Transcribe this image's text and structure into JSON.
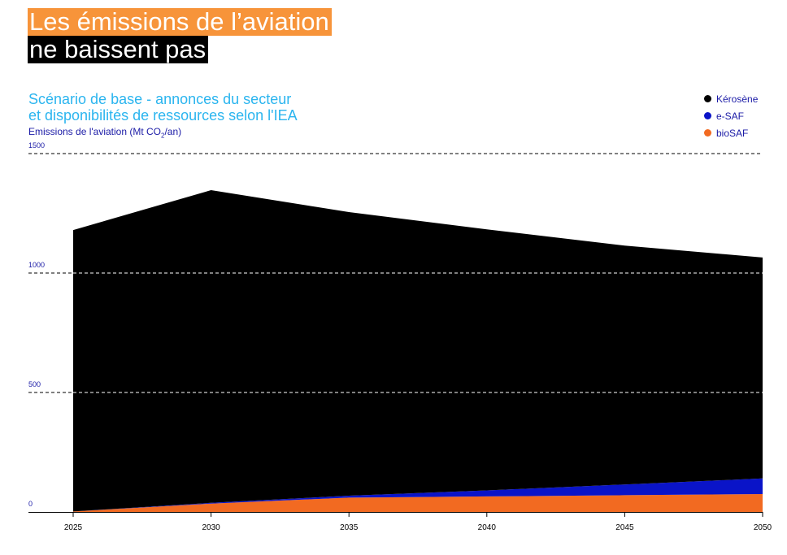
{
  "headline": {
    "line1": "Les émissions de l’aviation",
    "line2": "ne baissent pas"
  },
  "colors": {
    "headline_bg_1": "#f7943a",
    "headline_bg_2": "#000000",
    "subtitle": "#2bb5ef",
    "axis_text": "#1a1aa6",
    "kerosene": "#000000",
    "esaf": "#0a14c8",
    "biosaf": "#f26a21"
  },
  "chart_data": {
    "type": "area",
    "stacked": true,
    "title": "Scénario de base - annonces du secteur et disponibilités de ressources selon l'IEA",
    "title_lines": [
      "Scénario de base - annonces du secteur",
      "et disponibilités de ressources selon l'IEA"
    ],
    "ylabel_prefix": "Emissions de l'aviation (Mt CO",
    "ylabel_sub": "2",
    "ylabel_suffix": "/an)",
    "x": [
      2025,
      2030,
      2035,
      2040,
      2045,
      2050
    ],
    "x_ticks": [
      "2025",
      "2030",
      "2035",
      "2040",
      "2045",
      "2050"
    ],
    "y_ticks": [
      "0",
      "500",
      "1000",
      "1500"
    ],
    "y_tick_values": [
      0,
      500,
      1000,
      1500
    ],
    "ylim": [
      0,
      1500
    ],
    "grid": "dashed horizontal",
    "legend_position": "top-right",
    "series": [
      {
        "name": "bioSAF",
        "color": "#f26a21",
        "values": [
          2,
          35,
          60,
          65,
          70,
          75
        ]
      },
      {
        "name": "e-SAF",
        "color": "#0a14c8",
        "values": [
          0,
          3,
          8,
          25,
          45,
          65
        ]
      },
      {
        "name": "Kérosène",
        "color": "#000000",
        "values": [
          1178,
          1309,
          1187,
          1093,
          1000,
          925
        ]
      }
    ],
    "legend": [
      "Kérosène",
      "e-SAF",
      "bioSAF"
    ]
  }
}
